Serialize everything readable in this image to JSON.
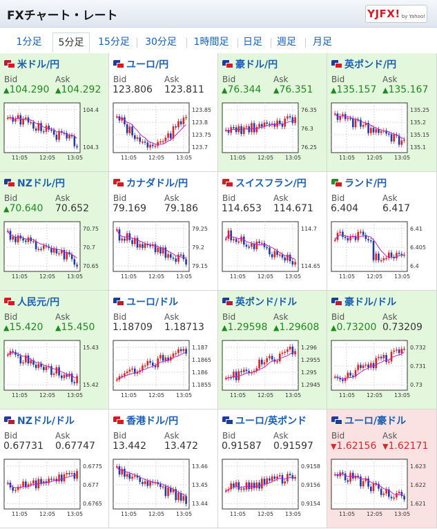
{
  "header": {
    "title": "FXチャート・レート",
    "logo": "YJFX!",
    "logo_sub": "by Yahoo!"
  },
  "tabs": [
    "1分足",
    "5分足",
    "15分足",
    "30分足",
    "1時間足",
    "日足",
    "週足",
    "月足"
  ],
  "active_tab": 1,
  "labels": {
    "bid": "Bid",
    "ask": "Ask"
  },
  "pairs": [
    {
      "name": "米ドル/円",
      "bid": "104.290",
      "ask": "104.292",
      "bid_dir": "up",
      "ask_dir": "up",
      "bg": "green",
      "flag": [
        "#b22234",
        "#d81a22"
      ],
      "yticks": [
        "104.4",
        "104.3"
      ],
      "xticks": [
        "11:05",
        "12:05",
        "13:05"
      ],
      "trend": "down"
    },
    {
      "name": "ユーロ/円",
      "bid": "123.806",
      "ask": "123.811",
      "bid_dir": "flat",
      "ask_dir": "flat",
      "bg": "white",
      "flag": [
        "#1f3c99",
        "#d81a22"
      ],
      "yticks": [
        "123.85",
        "123.8",
        "123.75",
        "123.7"
      ],
      "xticks": [
        "11:05",
        "12:05",
        "13:05"
      ],
      "trend": "downup"
    },
    {
      "name": "豪ドル/円",
      "bid": "76.344",
      "ask": "76.351",
      "bid_dir": "up",
      "ask_dir": "up",
      "bg": "green",
      "flag": [
        "#1f3c99",
        "#d81a22"
      ],
      "yticks": [
        "76.35",
        "76.3",
        "76.25"
      ],
      "xticks": [
        "11:05",
        "12:05",
        "13:05"
      ],
      "trend": "flatup"
    },
    {
      "name": "英ポンド/円",
      "bid": "135.157",
      "ask": "135.167",
      "bid_dir": "up",
      "ask_dir": "up",
      "bg": "green",
      "flag": [
        "#1f3c99",
        "#d81a22"
      ],
      "yticks": [
        "135.25",
        "135.2",
        "135.15",
        "135.1"
      ],
      "xticks": [
        "11:05",
        "12:05",
        "13:05"
      ],
      "trend": "down"
    },
    {
      "name": "NZドル/円",
      "bid": "70.640",
      "ask": "70.652",
      "bid_dir": "up",
      "ask_dir": "flat",
      "bg": "green",
      "flag": [
        "#1f3c99",
        "#d81a22"
      ],
      "yticks": [
        "70.75",
        "70.7",
        "70.65"
      ],
      "xticks": [
        "11:05",
        "12:05",
        "13:05"
      ],
      "trend": "down"
    },
    {
      "name": "カナダドル/円",
      "bid": "79.169",
      "ask": "79.186",
      "bid_dir": "flat",
      "ask_dir": "flat",
      "bg": "white",
      "flag": [
        "#d81a22",
        "#d81a22"
      ],
      "yticks": [
        "79.25",
        "79.2",
        "79.15"
      ],
      "xticks": [
        "11:05",
        "12:05",
        "13:05"
      ],
      "trend": "down"
    },
    {
      "name": "スイスフラン/円",
      "bid": "114.653",
      "ask": "114.671",
      "bid_dir": "flat",
      "ask_dir": "flat",
      "bg": "white",
      "flag": [
        "#d81a22",
        "#d81a22"
      ],
      "yticks": [
        "114.7",
        "114.65"
      ],
      "xticks": [
        "11:05",
        "12:05",
        "13:05"
      ],
      "trend": "down"
    },
    {
      "name": "ランド/円",
      "bid": "6.404",
      "ask": "6.417",
      "bid_dir": "flat",
      "ask_dir": "flat",
      "bg": "white",
      "flag": [
        "#2a8a2a",
        "#d81a22"
      ],
      "yticks": [
        "6.41",
        "6.405",
        "6.4"
      ],
      "xticks": [
        "11:05",
        "12:05",
        "13:05"
      ],
      "trend": "flatdown"
    },
    {
      "name": "人民元/円",
      "bid": "15.420",
      "ask": "15.450",
      "bid_dir": "up",
      "ask_dir": "up",
      "bg": "green",
      "flag": [
        "#d81a22",
        "#d81a22"
      ],
      "yticks": [
        "15.43",
        "15.42"
      ],
      "xticks": [
        "11:05",
        "12:05",
        "13:05"
      ],
      "trend": "down"
    },
    {
      "name": "ユーロ/ドル",
      "bid": "1.18709",
      "ask": "1.18713",
      "bid_dir": "flat",
      "ask_dir": "flat",
      "bg": "white",
      "flag": [
        "#1f3c99",
        "#b22234"
      ],
      "yticks": [
        "1.187",
        "1.1865",
        "1.186",
        "1.1855"
      ],
      "xticks": [
        "11:05",
        "12:05",
        "13:05"
      ],
      "trend": "up"
    },
    {
      "name": "英ポンド/ドル",
      "bid": "1.29598",
      "ask": "1.29608",
      "bid_dir": "up",
      "ask_dir": "up",
      "bg": "green",
      "flag": [
        "#1f3c99",
        "#b22234"
      ],
      "yticks": [
        "1.296",
        "1.2955",
        "1.295",
        "1.2945"
      ],
      "xticks": [
        "11:05",
        "12:05",
        "13:05"
      ],
      "trend": "up"
    },
    {
      "name": "豪ドル/ドル",
      "bid": "0.73200",
      "ask": "0.73209",
      "bid_dir": "up",
      "ask_dir": "flat",
      "bg": "green",
      "flag": [
        "#1f3c99",
        "#b22234"
      ],
      "yticks": [
        "0.732",
        "0.731",
        "0.73"
      ],
      "xticks": [
        "11:05",
        "12:05",
        "13:05"
      ],
      "trend": "up"
    },
    {
      "name": "NZドル/ドル",
      "bid": "0.67731",
      "ask": "0.67747",
      "bid_dir": "flat",
      "ask_dir": "flat",
      "bg": "white",
      "flag": [
        "#1f3c99",
        "#b22234"
      ],
      "yticks": [
        "0.6775",
        "0.677",
        "0.6765"
      ],
      "xticks": [
        "11:05",
        "12:05",
        "13:05"
      ],
      "trend": "flatup"
    },
    {
      "name": "香港ドル/円",
      "bid": "13.442",
      "ask": "13.472",
      "bid_dir": "flat",
      "ask_dir": "flat",
      "bg": "white",
      "flag": [
        "#d81a22",
        "#d81a22"
      ],
      "yticks": [
        "13.46",
        "13.45",
        "13.44"
      ],
      "xticks": [
        "11:05",
        "12:05",
        "13:05"
      ],
      "trend": "down"
    },
    {
      "name": "ユーロ/英ポンド",
      "bid": "0.91587",
      "ask": "0.91597",
      "bid_dir": "flat",
      "ask_dir": "flat",
      "bg": "white",
      "flag": [
        "#1f3c99",
        "#1f3c99"
      ],
      "yticks": [
        "0.9158",
        "0.9156",
        "0.9154"
      ],
      "xticks": [
        "11:05",
        "12:05",
        "13:05"
      ],
      "trend": "flatup"
    },
    {
      "name": "ユーロ/豪ドル",
      "bid": "1.62156",
      "ask": "1.62171",
      "bid_dir": "down",
      "ask_dir": "down",
      "bg": "red",
      "flag": [
        "#1f3c99",
        "#1f3c99"
      ],
      "yticks": [
        "1.623",
        "1.622",
        "1.621"
      ],
      "xticks": [
        "11:05",
        "12:05",
        "13:05"
      ],
      "trend": "down"
    }
  ]
}
